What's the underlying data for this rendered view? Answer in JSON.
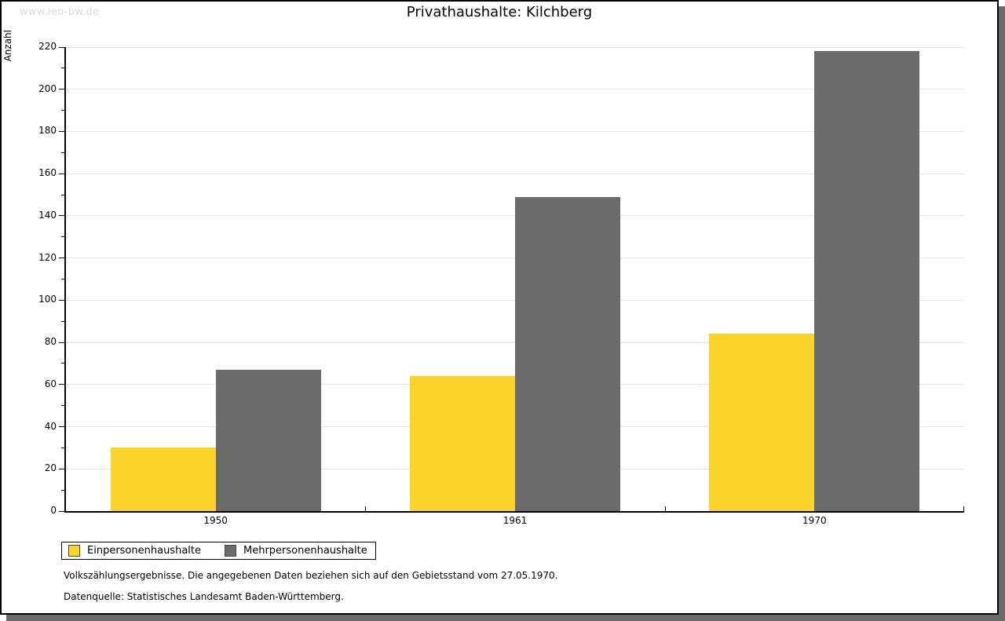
{
  "watermark": "www.leo-bw.de",
  "chart_data": {
    "type": "bar",
    "title": "Privathaushalte: Kilchberg",
    "ylabel": "Anzahl",
    "xlabel": "",
    "categories": [
      "1950",
      "1961",
      "1970"
    ],
    "series": [
      {
        "name": "Einpersonenhaushalte",
        "color": "#fcd32b",
        "values": [
          30,
          64,
          84
        ]
      },
      {
        "name": "Mehrpersonenhaushalte",
        "color": "#6b6b6b",
        "values": [
          67,
          149,
          218
        ]
      }
    ],
    "ylim": [
      0,
      220
    ],
    "ytick_step": 20,
    "yminor_step": 10,
    "grid": true,
    "legend_position": "bottom-left"
  },
  "footer": {
    "line1": "Volkszählungsergebnisse. Die angegebenen Daten beziehen sich auf den Gebietsstand vom 27.05.1970.",
    "line2": "Datenquelle: Statistisches Landesamt Baden-Württemberg."
  },
  "colors": {
    "bar_yellow": "#fcd32b",
    "bar_gray": "#6b6b6b",
    "gridline": "#e4e4e4",
    "axis": "#000000",
    "watermark": "#d9d9d9",
    "shadow": "#6a6a6a",
    "background": "#ffffff"
  }
}
